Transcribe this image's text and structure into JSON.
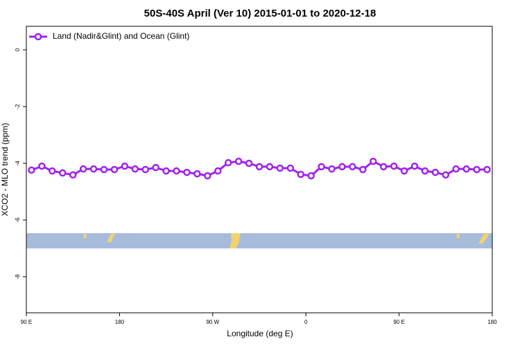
{
  "chart_data": {
    "type": "line",
    "title": "50S-40S April (Ver 10)   2015-01-01 to 2020-12-18",
    "x_label": "Longitude (deg E)",
    "y_label": "XCO2 - MLO trend (ppm)",
    "x": [
      95,
      105,
      115,
      125,
      135,
      145,
      155,
      165,
      175,
      185,
      195,
      205,
      215,
      225,
      235,
      245,
      255,
      265,
      275,
      285,
      295,
      305,
      315,
      325,
      335,
      345,
      355,
      365,
      375,
      385,
      395,
      405,
      415,
      425,
      435,
      445,
      455,
      465,
      475,
      485,
      495,
      505,
      515,
      525,
      535
    ],
    "series": [
      {
        "name": "Land (Nadir&Glint) and Ocean (Glint)",
        "color": "#a020f0",
        "values": [
          -4.24,
          -4.1,
          -4.27,
          -4.34,
          -4.41,
          -4.2,
          -4.2,
          -4.22,
          -4.22,
          -4.1,
          -4.2,
          -4.22,
          -4.15,
          -4.27,
          -4.27,
          -4.32,
          -4.37,
          -4.44,
          -4.27,
          -3.98,
          -3.93,
          -4.0,
          -4.12,
          -4.12,
          -4.17,
          -4.17,
          -4.39,
          -4.44,
          -4.12,
          -4.2,
          -4.12,
          -4.12,
          -4.22,
          -3.93,
          -4.12,
          -4.1,
          -4.27,
          -4.1,
          -4.27,
          -4.32,
          -4.41,
          -4.2,
          -4.2,
          -4.22,
          -4.22
        ]
      }
    ],
    "xlim": [
      90,
      540
    ],
    "xticks": [
      {
        "value": 90,
        "label": "90 E"
      },
      {
        "value": 180,
        "label": "180"
      },
      {
        "value": 270,
        "label": "90 W"
      },
      {
        "value": 360,
        "label": "0"
      },
      {
        "value": 450,
        "label": "90 E"
      },
      {
        "value": 540,
        "label": "180"
      }
    ],
    "ylim": [
      -9.27,
      0.83
    ],
    "yticks": [
      0,
      -2,
      -4,
      -6,
      -8
    ],
    "legend": "top-left"
  }
}
